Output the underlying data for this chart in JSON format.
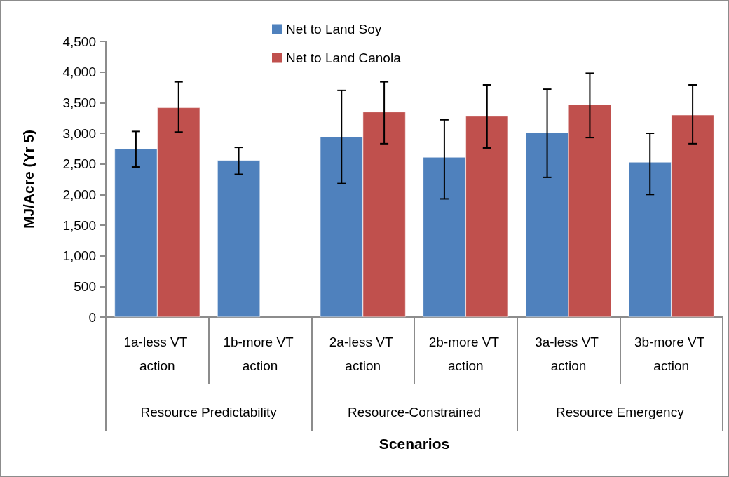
{
  "chart_data": {
    "type": "bar",
    "xlabel": "Scenarios",
    "ylabel": "MJ/Acre (Yr 5)",
    "categories": [
      "1a-less VT action",
      "1b-more VT action",
      "2a-less VT action",
      "2b-more VT action",
      "3a-less VT action",
      "3b-more VT action"
    ],
    "annotations": [
      "Resource Predictability",
      "Resource-Constrained",
      "Resource Emergency"
    ],
    "series": [
      {
        "name": "Net to Land Soy",
        "color": "#4f81bd",
        "values": [
          2750,
          2560,
          2940,
          2610,
          3010,
          2530
        ],
        "errors": [
          [
            2450,
            3030
          ],
          [
            2330,
            2770
          ],
          [
            2180,
            3700
          ],
          [
            1930,
            3220
          ],
          [
            2280,
            3720
          ],
          [
            2000,
            3000
          ]
        ]
      },
      {
        "name": "Net to Land Canola",
        "color": "#c0504d",
        "values": [
          3420,
          null,
          3350,
          3280,
          3470,
          3300
        ],
        "errors": [
          [
            3020,
            3840
          ],
          null,
          [
            2830,
            3840
          ],
          [
            2760,
            3790
          ],
          [
            2930,
            3980
          ],
          [
            2830,
            3790
          ]
        ]
      }
    ],
    "ylim": [
      0,
      4500
    ],
    "yticks": [
      {
        "value": 0,
        "label": "0"
      },
      {
        "value": 500,
        "label": "500"
      },
      {
        "value": 1000,
        "label": "1,000"
      },
      {
        "value": 1500,
        "label": "1,500"
      },
      {
        "value": 2000,
        "label": "2,000"
      },
      {
        "value": 2500,
        "label": "2,500"
      },
      {
        "value": 3000,
        "label": "3,000"
      },
      {
        "value": 3500,
        "label": "3,500"
      },
      {
        "value": 4000,
        "label": "4,000"
      },
      {
        "value": 4500,
        "label": "4,500"
      }
    ],
    "grid": false,
    "legend": "top"
  }
}
